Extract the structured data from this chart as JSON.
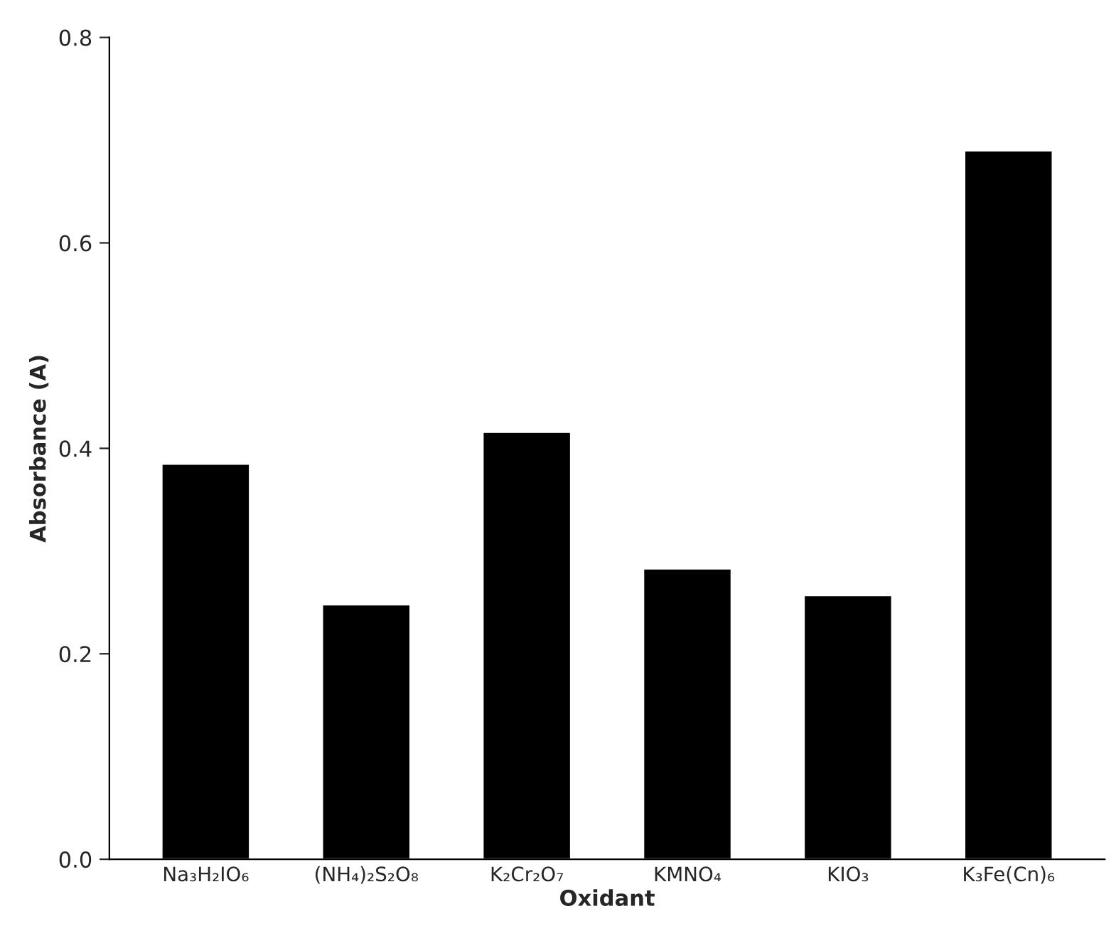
{
  "chart_data": {
    "type": "bar",
    "xlabel": "Oxidant",
    "ylabel": "Absorbance (A)",
    "categories": [
      "Na₃H₂IO₆",
      "(NH₄)₂S₂O₈",
      "K₂Cr₂O₇",
      "KMNO₄",
      "KIO₃",
      "K₃Fe(Cn)₆"
    ],
    "values": [
      0.385,
      0.248,
      0.416,
      0.283,
      0.257,
      0.69
    ],
    "color": "#000000",
    "ylim": [
      0,
      0.8
    ],
    "yticks": [
      {
        "value": 0,
        "label": "0.0"
      },
      {
        "value": 0.2,
        "label": "0.2"
      },
      {
        "value": 0.4,
        "label": "0.4"
      },
      {
        "value": 0.6,
        "label": "0.6"
      },
      {
        "value": 0.8,
        "label": "0.8"
      }
    ],
    "grid": false
  }
}
